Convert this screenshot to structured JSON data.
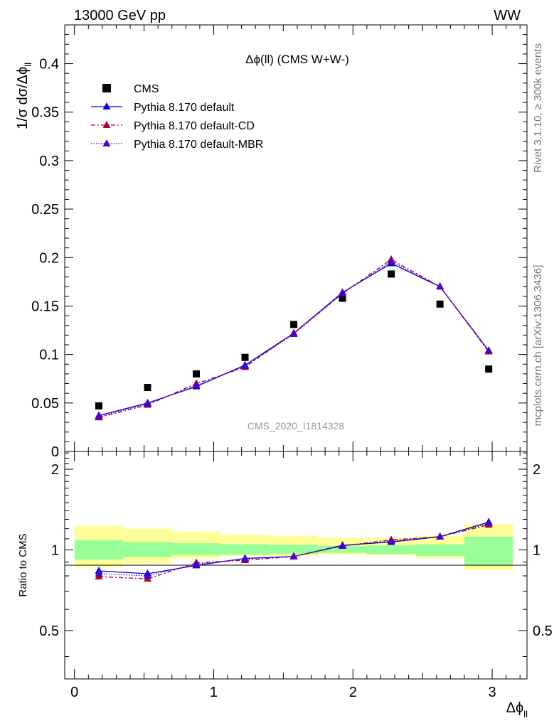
{
  "header": {
    "left": "13000 GeV pp",
    "right": "WW"
  },
  "side_labels": {
    "rivet": "Rivet 3.1.10, ≥ 300k events",
    "mcplots": "mcplots.cern.ch [arXiv:1306.3436]"
  },
  "watermark": "CMS_2020_I1814328",
  "chart_data": [
    {
      "type": "line",
      "title": "Δϕ(ll) (CMS W+W-)",
      "ylabel": "1/σ dσ/Δϕ",
      "ylabel_sub": "ll",
      "ylim": [
        0,
        0.44
      ],
      "yticks": [
        0,
        0.05,
        0.1,
        0.15,
        0.2,
        0.25,
        0.3,
        0.35,
        0.4
      ],
      "ytick_labels": [
        "0",
        "0.05",
        "0.1",
        "0.15",
        "0.2",
        "0.25",
        "0.3",
        "0.35",
        "0.4"
      ],
      "xlim": [
        -0.07,
        3.25
      ],
      "legend_position": "top-left",
      "x": [
        0.175,
        0.525,
        0.875,
        1.225,
        1.575,
        1.925,
        2.275,
        2.625,
        2.975
      ],
      "series": [
        {
          "name": "CMS",
          "style": "marker-square",
          "color": "#000000",
          "values": [
            0.047,
            0.066,
            0.08,
            0.097,
            0.131,
            0.158,
            0.183,
            0.152,
            0.085
          ]
        },
        {
          "name": "Pythia 8.170 default",
          "style": "solid-triangle",
          "color": "#0000e6",
          "values": [
            0.037,
            0.05,
            0.067,
            0.089,
            0.122,
            0.164,
            0.194,
            0.17,
            0.104
          ]
        },
        {
          "name": "Pythia 8.170 default-CD",
          "style": "dashdot-triangle",
          "color": "#b00030",
          "values": [
            0.035,
            0.048,
            0.07,
            0.087,
            0.122,
            0.163,
            0.198,
            0.17,
            0.103
          ]
        },
        {
          "name": "Pythia 8.170 default-MBR",
          "style": "dotted-triangle",
          "color": "#4a00c8",
          "values": [
            0.036,
            0.049,
            0.068,
            0.088,
            0.121,
            0.163,
            0.196,
            0.17,
            0.104
          ]
        }
      ]
    },
    {
      "type": "line",
      "ylabel": "Ratio to CMS",
      "xlabel": "Δϕ",
      "xlabel_sub": "ll",
      "ylim": [
        0.33,
        2.33
      ],
      "yticks": [
        0.5,
        1,
        2
      ],
      "ytick_labels": [
        "0.5",
        "1",
        "2"
      ],
      "xlim": [
        -0.07,
        3.25
      ],
      "xticks": [
        0,
        1,
        2,
        3
      ],
      "xtick_labels": [
        "0",
        "1",
        "2",
        "3"
      ],
      "bins": [
        0,
        0.35,
        0.7,
        1.05,
        1.4,
        1.75,
        2.1,
        2.45,
        2.8,
        3.15
      ],
      "band_inner": [
        [
          0.92,
          1.09
        ],
        [
          0.94,
          1.07
        ],
        [
          0.955,
          1.06
        ],
        [
          0.96,
          1.05
        ],
        [
          0.965,
          1.045
        ],
        [
          0.975,
          1.035
        ],
        [
          0.965,
          1.04
        ],
        [
          0.95,
          1.05
        ],
        [
          0.88,
          1.12
        ]
      ],
      "band_outer": [
        [
          0.86,
          1.23
        ],
        [
          0.89,
          1.2
        ],
        [
          0.93,
          1.17
        ],
        [
          0.95,
          1.14
        ],
        [
          0.95,
          1.13
        ],
        [
          0.96,
          1.11
        ],
        [
          0.955,
          1.11
        ],
        [
          0.93,
          1.13
        ],
        [
          0.84,
          1.25
        ]
      ],
      "x": [
        0.175,
        0.525,
        0.875,
        1.225,
        1.575,
        1.925,
        2.275,
        2.625,
        2.975
      ],
      "series": [
        {
          "name": "Pythia 8.170 default",
          "style": "solid-triangle",
          "color": "#0000e6",
          "values": [
            0.835,
            0.815,
            0.875,
            0.93,
            0.945,
            1.04,
            1.07,
            1.12,
            1.27
          ]
        },
        {
          "name": "Pythia 8.170 default-CD",
          "style": "dashdot-triangle",
          "color": "#b00030",
          "values": [
            0.795,
            0.78,
            0.895,
            0.915,
            0.945,
            1.035,
            1.09,
            1.12,
            1.24
          ]
        },
        {
          "name": "Pythia 8.170 default-MBR",
          "style": "dotted-triangle",
          "color": "#4a00c8",
          "values": [
            0.815,
            0.8,
            0.885,
            0.925,
            0.945,
            1.035,
            1.08,
            1.12,
            1.255
          ]
        }
      ]
    }
  ]
}
